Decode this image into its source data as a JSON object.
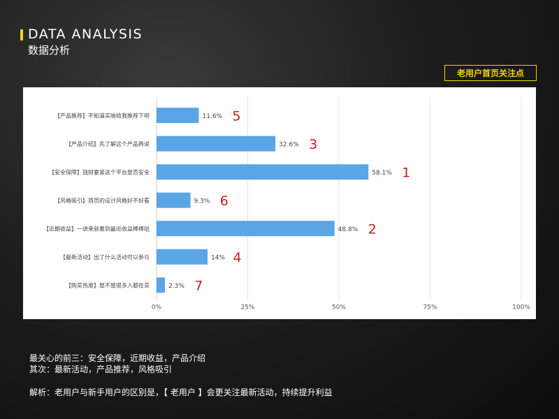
{
  "header": {
    "title_en": "DATA ANALYSIS",
    "title_cn": "数据分析",
    "accent_color": "#f2d600"
  },
  "badge": {
    "label": "老用户首页关注点"
  },
  "chart_data": {
    "type": "bar",
    "orientation": "horizontal",
    "categories": [
      "【产品推荐】不知道买啥给我推荐下呗",
      "【产品介绍】先了解这个产品再说",
      "【安全保障】钱财要紧这个平台是否安全",
      "【风格吸引】首页的设计风格好不好看",
      "【近期收益】一进来就看到最近收益棒棒哒",
      "【最新活动】出了什么活动可以参与",
      "【购买热度】是不是很多人都在买"
    ],
    "values": [
      11.6,
      32.6,
      58.1,
      9.3,
      48.8,
      14,
      2.3
    ],
    "value_labels": [
      "11.6%",
      "32.6%",
      "58.1%",
      "9.3%",
      "48.8%",
      "14%",
      "2.3%"
    ],
    "ranks": [
      "5",
      "3",
      "1",
      "6",
      "2",
      "4",
      "7"
    ],
    "xlim": [
      0,
      100
    ],
    "xticks": [
      "0%",
      "25%",
      "50%",
      "75%",
      "100%"
    ],
    "grid": true,
    "bar_color": "#5aa5e6",
    "rank_color": "#d0191b"
  },
  "notes": {
    "line1": "最关心的前三：安全保障，近期收益，产品介绍",
    "line2": "其次：最新活动，产品推荐，风格吸引",
    "line3": "解析：老用户与新手用户的区别是，【 老用户 】会更关注最新活动，持续提升利益"
  }
}
